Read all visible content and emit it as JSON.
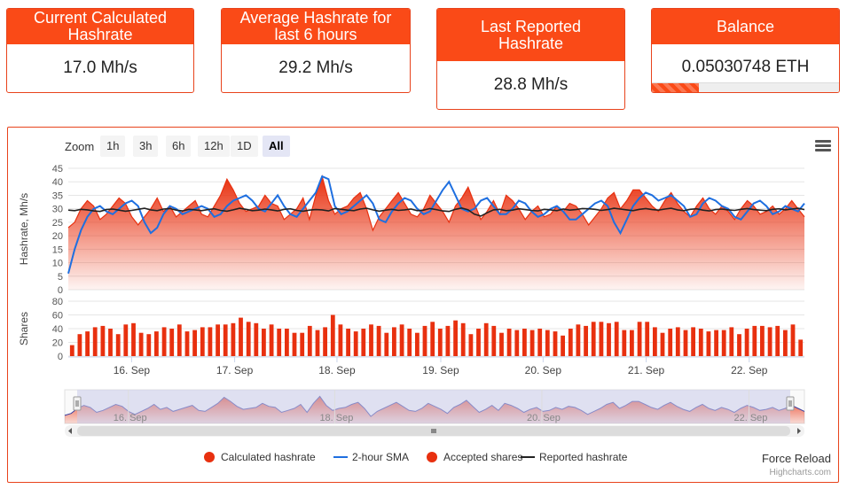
{
  "cards": [
    {
      "title": "Current Calculated Hashrate",
      "value": "17.0 Mh/s"
    },
    {
      "title": "Average Hashrate for last 6 hours",
      "value": "29.2 Mh/s"
    },
    {
      "title": "Last Reported Hashrate",
      "value": "28.8 Mh/s"
    },
    {
      "title": "Balance",
      "value": "0.05030748 ETH",
      "progress_fraction": 0.25
    }
  ],
  "toolbar": {
    "zoom_label": "Zoom",
    "buttons": [
      "1h",
      "3h",
      "6h",
      "12h",
      "1D",
      "All"
    ],
    "active": "All"
  },
  "colors": {
    "accent": "#fa4a17",
    "sma_line": "#1e6fe0",
    "reported_line": "#222222",
    "navigator_mask": "#c8cbea"
  },
  "force_reload": "Force Reload",
  "credits": "Highcharts.com",
  "chart_data": [
    {
      "type": "area",
      "ylabel": "Hashrate, Mh/s",
      "ylim": [
        0,
        45
      ],
      "yticks": [
        0,
        5,
        10,
        15,
        20,
        25,
        30,
        35,
        40,
        45
      ],
      "xlim": [
        0,
        1
      ],
      "xticks": [
        {
          "x": 0.086,
          "label": "16. Sep"
        },
        {
          "x": 0.226,
          "label": "17. Sep"
        },
        {
          "x": 0.365,
          "label": "18. Sep"
        },
        {
          "x": 0.506,
          "label": "19. Sep"
        },
        {
          "x": 0.645,
          "label": "20. Sep"
        },
        {
          "x": 0.785,
          "label": "21. Sep"
        },
        {
          "x": 0.925,
          "label": "22. Sep"
        }
      ],
      "series": [
        {
          "name": "Calculated hashrate",
          "kind": "area",
          "values": [
            23,
            25,
            30,
            33,
            31,
            26,
            28,
            31,
            34,
            32,
            27,
            24,
            27,
            30,
            34,
            29,
            31,
            27,
            29,
            31,
            33,
            28,
            27,
            31,
            35,
            41,
            37,
            32,
            29,
            30,
            31,
            35,
            32,
            31,
            26,
            28,
            30,
            34,
            26,
            35,
            42,
            33,
            28,
            30,
            31,
            34,
            36,
            30,
            22,
            27,
            30,
            33,
            36,
            32,
            28,
            27,
            30,
            35,
            32,
            29,
            25,
            31,
            34,
            38,
            32,
            26,
            29,
            33,
            28,
            35,
            33,
            30,
            26,
            29,
            31,
            27,
            28,
            31,
            29,
            32,
            31,
            28,
            24,
            27,
            30,
            34,
            36,
            30,
            33,
            37,
            37,
            34,
            31,
            29,
            33,
            36,
            32,
            29,
            27,
            31,
            34,
            30,
            28,
            31,
            29,
            26,
            30,
            33,
            31,
            28,
            29,
            31,
            28,
            30,
            33,
            30,
            27
          ]
        },
        {
          "name": "2-hour SMA",
          "kind": "line",
          "values": [
            6,
            15,
            22,
            27,
            30,
            31,
            29,
            28,
            30,
            32,
            33,
            31,
            25,
            21,
            23,
            28,
            31,
            30,
            28,
            29,
            30,
            31,
            30,
            27,
            28,
            31,
            33,
            34,
            35,
            33,
            30,
            29,
            32,
            35,
            31,
            28,
            27,
            30,
            33,
            36,
            42,
            41,
            31,
            28,
            29,
            31,
            33,
            35,
            32,
            26,
            25,
            29,
            32,
            34,
            33,
            30,
            28,
            29,
            33,
            37,
            40,
            35,
            30,
            29,
            30,
            33,
            34,
            31,
            28,
            28,
            30,
            33,
            32,
            29,
            27,
            28,
            30,
            31,
            29,
            26,
            26,
            28,
            30,
            32,
            33,
            31,
            25,
            21,
            26,
            31,
            34,
            36,
            35,
            33,
            34,
            35,
            33,
            31,
            27,
            28,
            32,
            34,
            33,
            31,
            30,
            27,
            26,
            29,
            32,
            33,
            31,
            28,
            29,
            31,
            30,
            29,
            32
          ]
        },
        {
          "name": "Reported hashrate",
          "kind": "line",
          "values": [
            29.5,
            29.3,
            29.8,
            29.6,
            29.2,
            29.0,
            29.7,
            29.9,
            29.5,
            29.1,
            29.4,
            29.8,
            30.2,
            29.6,
            29.3,
            29.9,
            30.1,
            29.5,
            29.2,
            29.8,
            29.6,
            29.3,
            29.7,
            30.0,
            29.4,
            29.1,
            29.6,
            30.2,
            29.8,
            29.3,
            29.5,
            29.9,
            29.6,
            29.2,
            29.8,
            30.0,
            29.4,
            29.1,
            29.5,
            29.7,
            29.6,
            29.2,
            30.1,
            29.8,
            29.5,
            29.3,
            29.9,
            30.2,
            29.6,
            29.1,
            29.5,
            29.8,
            29.4,
            29.6,
            29.9,
            29.3,
            29.5,
            30.1,
            29.7,
            29.2,
            29.0,
            29.8,
            30.3,
            29.6,
            28.0,
            27.3,
            28.5,
            29.6,
            29.8,
            29.3,
            29.5,
            30.0,
            29.7,
            29.4,
            29.2,
            29.8,
            29.6,
            29.3,
            29.9,
            29.5,
            29.7,
            30.1,
            30.0,
            29.8,
            29.4,
            29.7,
            30.2,
            29.9,
            29.6,
            29.3,
            29.8,
            30.1,
            29.7,
            29.5,
            29.9,
            30.2,
            29.6,
            29.3,
            29.8,
            30.0,
            29.5,
            29.2,
            29.7,
            29.9,
            29.6,
            29.4,
            29.8,
            30.1,
            29.7,
            29.5,
            29.3,
            29.8,
            30.0,
            29.6,
            29.9,
            30.2,
            29.7
          ]
        }
      ]
    },
    {
      "type": "bar",
      "ylabel": "Shares",
      "ylim": [
        0,
        80
      ],
      "yticks": [
        0,
        20,
        40,
        60,
        80
      ],
      "series": [
        {
          "name": "Accepted shares",
          "values": [
            16,
            32,
            36,
            42,
            44,
            40,
            32,
            46,
            48,
            34,
            32,
            36,
            42,
            40,
            46,
            36,
            38,
            42,
            42,
            46,
            46,
            48,
            56,
            50,
            48,
            40,
            46,
            40,
            40,
            34,
            34,
            44,
            38,
            42,
            60,
            46,
            40,
            36,
            40,
            46,
            44,
            34,
            42,
            46,
            40,
            34,
            44,
            50,
            40,
            44,
            52,
            48,
            32,
            40,
            48,
            44,
            34,
            40,
            38,
            40,
            38,
            40,
            38,
            36,
            30,
            40,
            46,
            44,
            50,
            50,
            48,
            50,
            38,
            38,
            50,
            50,
            42,
            34,
            40,
            42,
            38,
            42,
            40,
            36,
            38,
            38,
            42,
            32,
            40,
            44,
            44,
            42,
            44,
            38,
            46,
            24
          ]
        }
      ]
    }
  ],
  "legend": [
    {
      "name": "Calculated hashrate",
      "marker": "circle"
    },
    {
      "name": "2-hour SMA",
      "marker": "line"
    },
    {
      "name": "Accepted shares",
      "marker": "circle"
    },
    {
      "name": "Reported hashrate",
      "marker": "line"
    }
  ],
  "navigator": {
    "xticks": [
      {
        "x": 0.086,
        "label": "16. Sep"
      },
      {
        "x": 0.365,
        "label": "18. Sep"
      },
      {
        "x": 0.645,
        "label": "20. Sep"
      },
      {
        "x": 0.925,
        "label": "22. Sep"
      }
    ]
  }
}
